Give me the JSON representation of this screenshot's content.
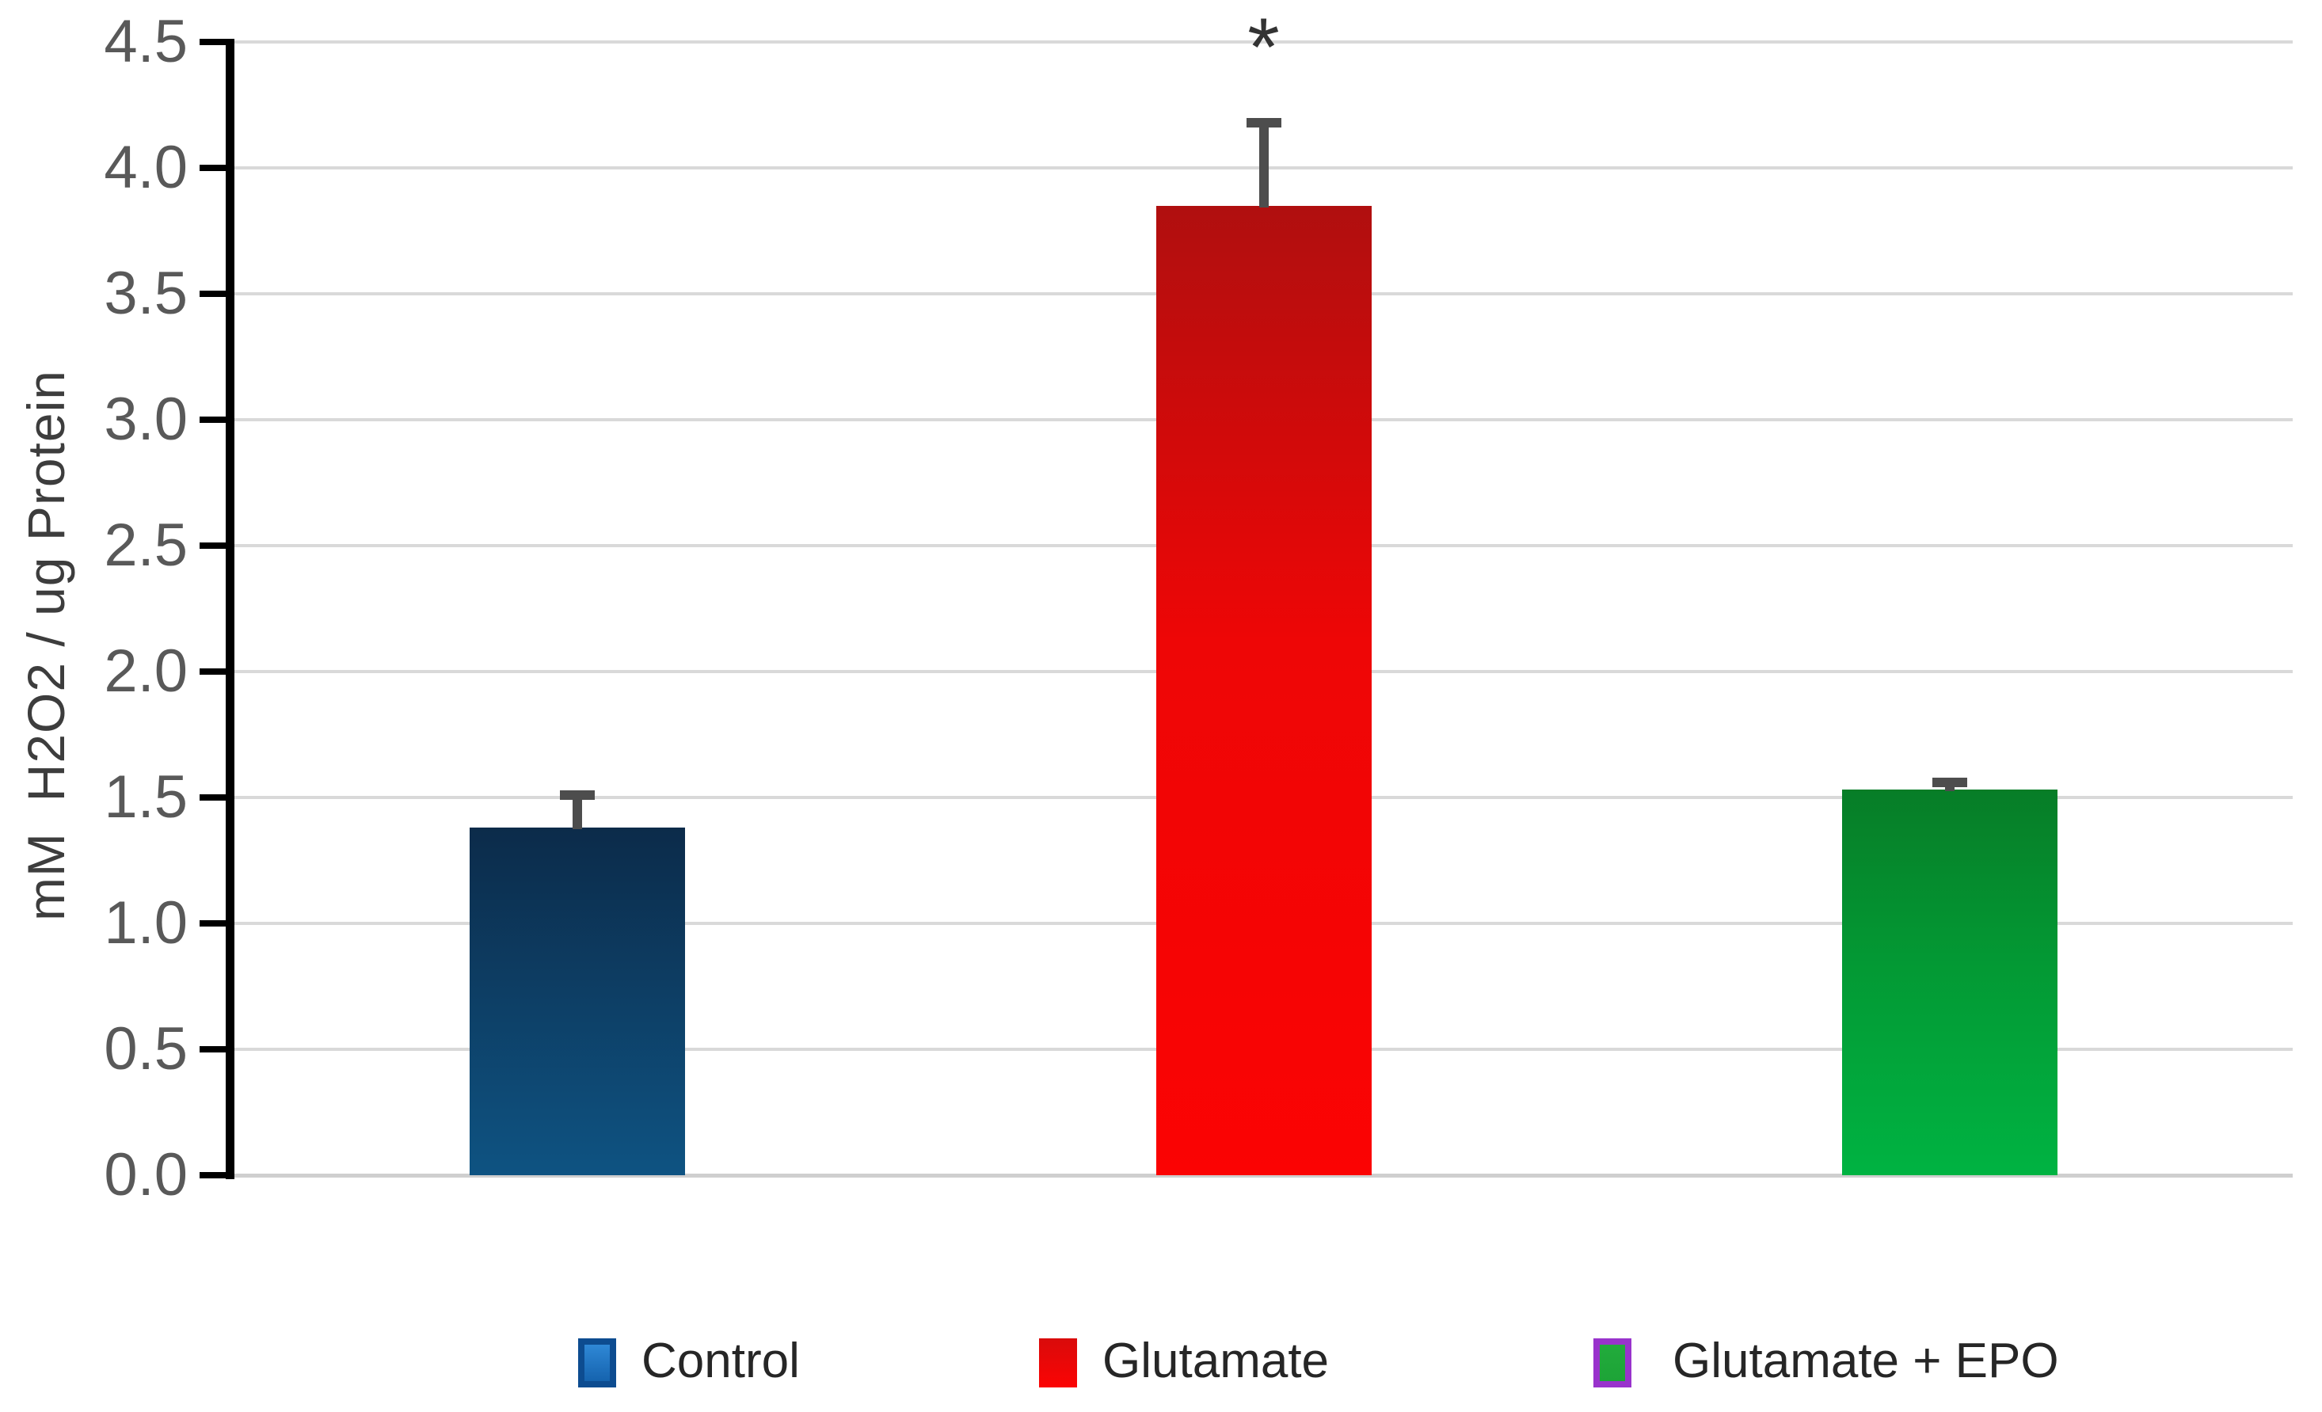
{
  "chart_data": {
    "type": "bar",
    "title": "",
    "xlabel": "",
    "ylabel": "mM  H2O2 / ug Protein",
    "ylim": [
      0,
      4.5
    ],
    "ytick_step": 0.5,
    "ytick_labels": [
      "0.0",
      "0.5",
      "1.0",
      "1.5",
      "2.0",
      "2.5",
      "3.0",
      "3.5",
      "4.0",
      "4.5"
    ],
    "grid": true,
    "legend_position": "bottom",
    "categories": [
      "Control",
      "Glutamate",
      "Glutamate + EPO"
    ],
    "series": [
      {
        "values": [
          1.38,
          3.85,
          1.53
        ],
        "error_bar_tops": [
          1.51,
          4.18,
          1.56
        ],
        "significance": [
          "",
          "*",
          ""
        ]
      }
    ],
    "bar_styles": [
      {
        "top": "#0c2b4a",
        "mid": "#0d3d63",
        "bottom": "#0e5382"
      },
      {
        "top": "#b00f0f",
        "mid": "#ee0606",
        "bottom": "#fb0303"
      },
      {
        "top": "#077d27",
        "mid": "#039934",
        "bottom": "#00b342"
      }
    ],
    "colors": {
      "error_bar": "#4d4d4d",
      "gridline": "#d9d9d9",
      "axis": "#000000",
      "tick_label": "#595959",
      "axis_title": "#3d3d3d",
      "annotation": "#333333"
    }
  },
  "legend": {
    "items": [
      {
        "label": "Control",
        "fill_top": "#2f88d6",
        "fill_bottom": "#1563ae",
        "border": "#0d4c90"
      },
      {
        "label": "Glutamate",
        "fill_top": "#d90b0b",
        "fill_bottom": "#fb0404",
        "border": ""
      },
      {
        "label": "Glutamate + EPO",
        "fill_top": "#22ab3c",
        "fill_bottom": "#1da437",
        "border": "#9933cc"
      }
    ]
  },
  "annotation": {
    "significance_marker": "*"
  }
}
